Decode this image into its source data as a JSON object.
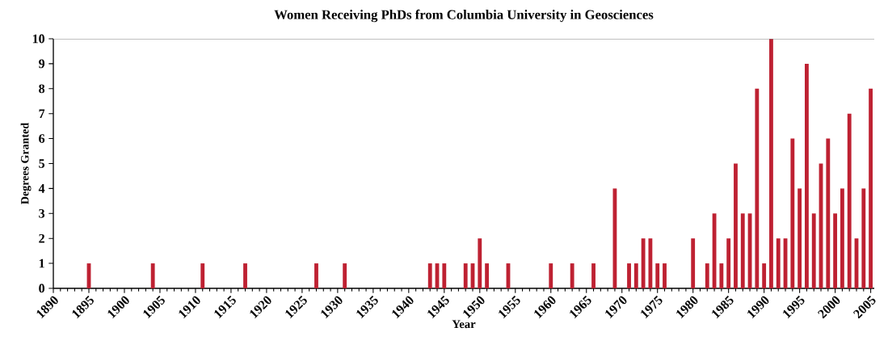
{
  "chart_data": {
    "type": "bar",
    "title": "Women Receiving PhDs from Columbia University in Geosciences",
    "xlabel": "Year",
    "ylabel": "Degrees Granted",
    "color": "#be2132",
    "x": [
      1895,
      1904,
      1911,
      1917,
      1927,
      1931,
      1943,
      1944,
      1945,
      1948,
      1949,
      1950,
      1951,
      1954,
      1960,
      1963,
      1966,
      1969,
      1971,
      1972,
      1973,
      1974,
      1975,
      1976,
      1980,
      1982,
      1983,
      1984,
      1985,
      1986,
      1987,
      1988,
      1989,
      1990,
      1991,
      1992,
      1993,
      1994,
      1995,
      1996,
      1997,
      1998,
      1999,
      2000,
      2001,
      2002,
      2003,
      2004,
      2005
    ],
    "values": [
      1,
      1,
      1,
      1,
      1,
      1,
      1,
      1,
      1,
      1,
      1,
      2,
      1,
      1,
      1,
      1,
      1,
      4,
      1,
      1,
      2,
      2,
      1,
      1,
      2,
      1,
      3,
      1,
      2,
      5,
      3,
      3,
      8,
      1,
      10,
      2,
      2,
      6,
      4,
      9,
      3,
      5,
      6,
      3,
      4,
      7,
      2,
      4,
      8
    ],
    "xlim": [
      1890,
      2005.5
    ],
    "xticks": [
      1890,
      1895,
      1900,
      1905,
      1910,
      1915,
      1920,
      1925,
      1930,
      1935,
      1940,
      1945,
      1950,
      1955,
      1960,
      1965,
      1970,
      1975,
      1980,
      1985,
      1990,
      1995,
      2000,
      2005
    ],
    "ylim": [
      0,
      10
    ],
    "yticks": [
      0,
      1,
      2,
      3,
      4,
      5,
      6,
      7,
      8,
      9,
      10
    ],
    "grid": false
  }
}
